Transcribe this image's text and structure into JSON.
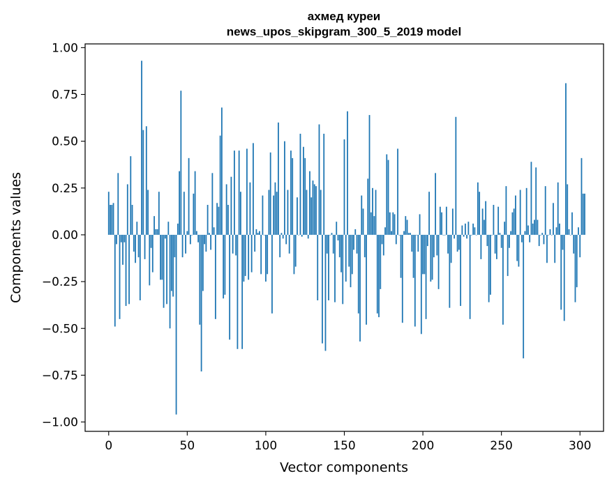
{
  "chart_data": {
    "type": "bar",
    "title": "ахмед куреи",
    "subtitle": "news_upos_skipgram_300_5_2019 model",
    "xlabel": "Vector components",
    "ylabel": "Components values",
    "xlim": [
      -15,
      315
    ],
    "ylim": [
      -1.05,
      1.02
    ],
    "xticks": [
      0,
      50,
      100,
      150,
      200,
      250,
      300
    ],
    "xtick_labels": [
      "0",
      "50",
      "100",
      "150",
      "200",
      "250",
      "300"
    ],
    "yticks": [
      1.0,
      0.75,
      0.5,
      0.25,
      0.0,
      -0.25,
      -0.5,
      -0.75,
      -1.0
    ],
    "ytick_labels": [
      "1.00",
      "0.75",
      "0.50",
      "0.25",
      "0.00",
      "−0.25",
      "−0.50",
      "−0.75",
      "−1.00"
    ],
    "bar_color": "#1f77b4",
    "grid": false,
    "values": [
      0.23,
      0.16,
      0.16,
      0.17,
      -0.49,
      -0.05,
      0.33,
      -0.45,
      -0.04,
      -0.16,
      -0.04,
      -0.38,
      0.27,
      -0.37,
      0.42,
      0.16,
      -0.09,
      -0.15,
      0.07,
      -0.12,
      -0.35,
      0.93,
      0.56,
      -0.13,
      0.58,
      0.24,
      -0.27,
      -0.07,
      -0.2,
      0.1,
      0.03,
      0.03,
      0.23,
      -0.24,
      -0.24,
      -0.39,
      -0.02,
      -0.37,
      0.07,
      -0.5,
      -0.3,
      -0.33,
      -0.12,
      -0.96,
      0.06,
      0.34,
      0.77,
      -0.12,
      0.23,
      -0.1,
      0.02,
      0.41,
      -0.05,
      0.0,
      0.22,
      0.34,
      0.02,
      -0.04,
      -0.48,
      -0.73,
      -0.3,
      -0.05,
      -0.09,
      0.16,
      0.01,
      -0.08,
      0.33,
      0.04,
      -0.45,
      0.17,
      0.15,
      0.53,
      0.68,
      -0.34,
      -0.32,
      0.27,
      0.16,
      -0.56,
      0.31,
      -0.1,
      0.45,
      -0.11,
      -0.61,
      0.45,
      0.23,
      -0.61,
      -0.25,
      -0.22,
      0.46,
      -0.24,
      0.28,
      -0.2,
      0.49,
      -0.09,
      0.03,
      0.01,
      0.02,
      -0.21,
      0.21,
      0.0,
      -0.25,
      -0.21,
      0.24,
      0.44,
      -0.42,
      0.21,
      0.28,
      0.23,
      0.6,
      -0.12,
      0.01,
      -0.02,
      0.5,
      -0.05,
      0.24,
      -0.1,
      0.45,
      0.41,
      -0.21,
      -0.17,
      0.2,
      0.0,
      0.54,
      -0.01,
      0.47,
      0.41,
      0.24,
      -0.02,
      0.34,
      0.2,
      0.29,
      0.27,
      0.26,
      -0.35,
      0.59,
      0.24,
      -0.58,
      0.54,
      -0.62,
      -0.1,
      -0.35,
      0.0,
      0.01,
      -0.1,
      -0.36,
      0.07,
      -0.03,
      -0.12,
      -0.2,
      -0.37,
      0.51,
      -0.25,
      0.66,
      -0.17,
      -0.28,
      -0.21,
      -0.08,
      0.03,
      -0.1,
      -0.42,
      -0.57,
      0.21,
      0.14,
      -0.12,
      -0.48,
      0.3,
      0.64,
      0.12,
      0.25,
      0.1,
      0.24,
      -0.42,
      -0.44,
      -0.29,
      -0.05,
      -0.11,
      0.04,
      0.43,
      0.4,
      0.12,
      0.02,
      0.12,
      0.11,
      -0.05,
      0.46,
      0.0,
      -0.23,
      -0.47,
      0.02,
      0.1,
      0.08,
      0.01,
      0.01,
      -0.09,
      -0.23,
      -0.49,
      0.0,
      -0.09,
      0.11,
      -0.53,
      -0.21,
      -0.21,
      -0.45,
      -0.06,
      0.23,
      -0.25,
      -0.24,
      -0.12,
      0.33,
      -0.11,
      -0.29,
      0.15,
      0.12,
      0.0,
      0.0,
      0.15,
      -0.1,
      -0.39,
      -0.15,
      0.14,
      -0.02,
      0.63,
      -0.09,
      -0.08,
      -0.38,
      0.05,
      -0.01,
      0.06,
      -0.02,
      0.07,
      -0.45,
      0.0,
      0.06,
      0.04,
      0.0,
      0.28,
      0.23,
      -0.13,
      0.14,
      0.08,
      0.18,
      -0.06,
      -0.36,
      -0.32,
      0.0,
      0.16,
      -0.1,
      -0.13,
      0.15,
      0.01,
      -0.07,
      -0.48,
      0.07,
      0.26,
      -0.22,
      -0.07,
      0.02,
      0.12,
      0.14,
      0.21,
      -0.14,
      -0.17,
      0.24,
      -0.04,
      -0.66,
      0.02,
      0.25,
      0.05,
      -0.04,
      0.39,
      0.06,
      0.08,
      0.36,
      0.08,
      -0.06,
      0.0,
      0.01,
      -0.05,
      0.26,
      -0.15,
      0.0,
      0.03,
      0.0,
      0.17,
      -0.15,
      0.04,
      0.28,
      0.06,
      -0.4,
      -0.08,
      -0.46,
      0.81,
      0.27,
      0.03,
      0.0,
      0.12,
      -0.1,
      -0.36,
      -0.28,
      0.04,
      -0.12,
      0.41,
      0.22,
      0.22
    ]
  }
}
